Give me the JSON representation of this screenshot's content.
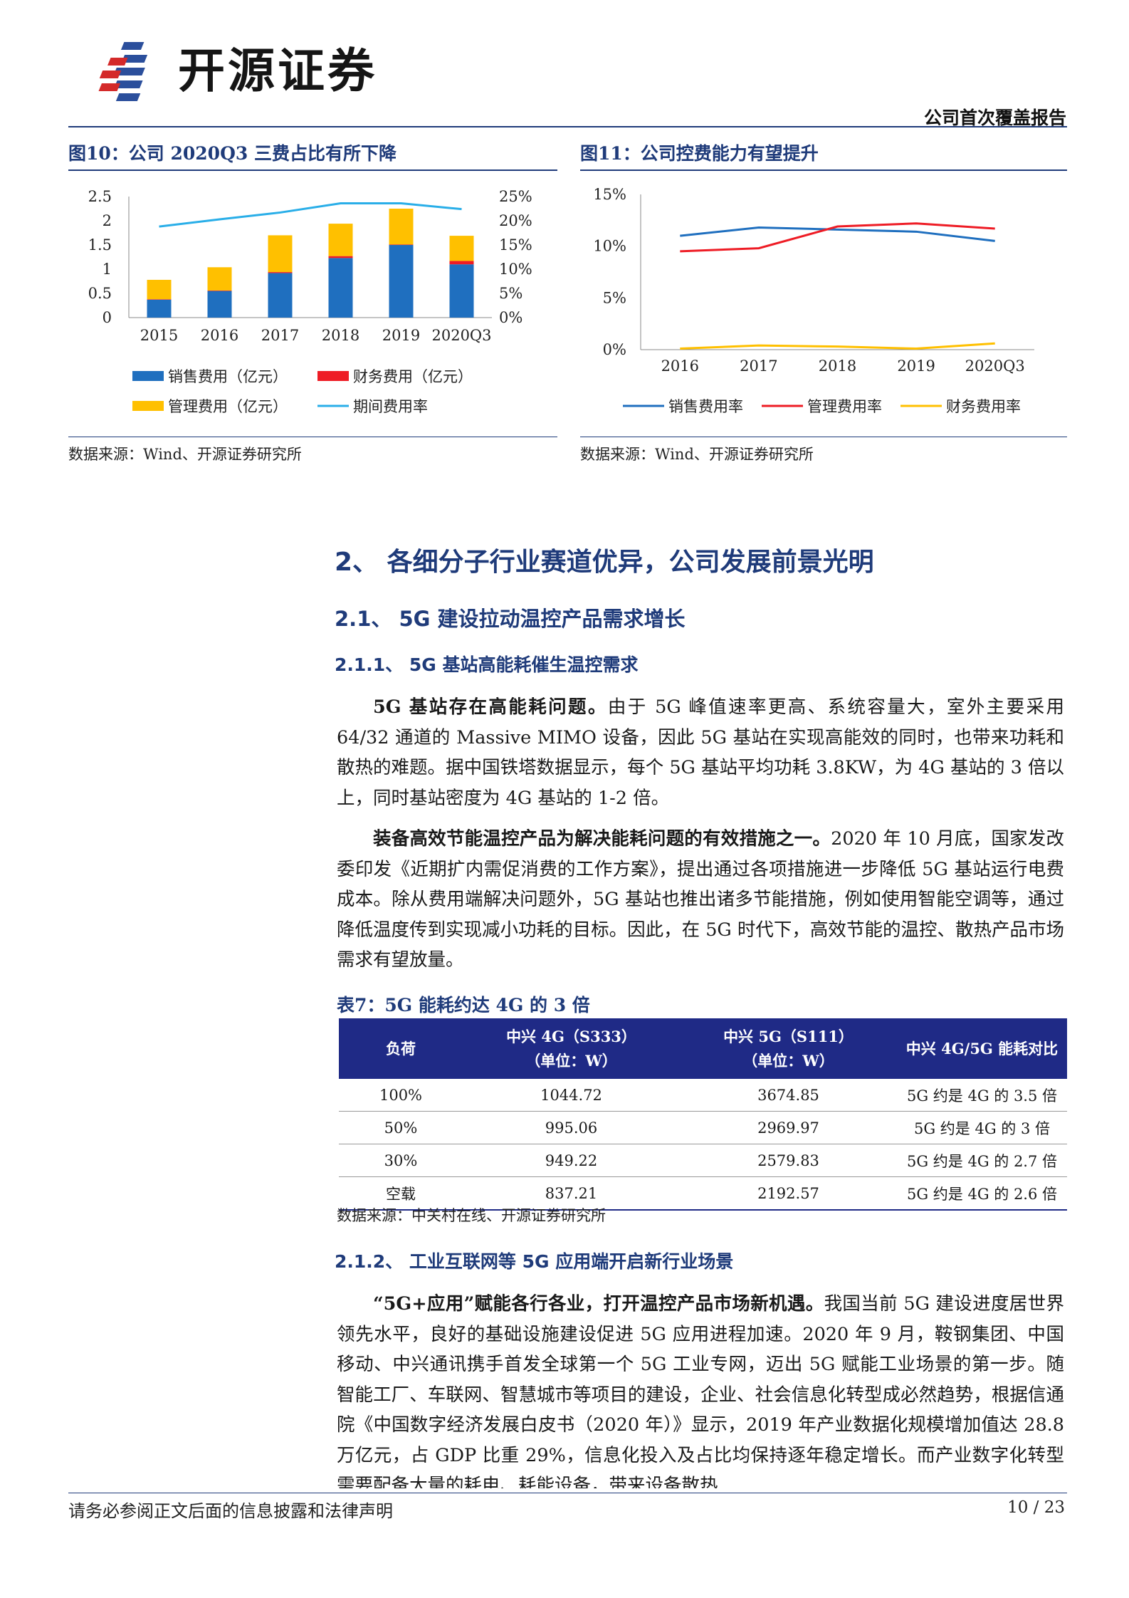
{
  "header": {
    "brand": "开源证券",
    "report_type": "公司首次覆盖报告",
    "colors": {
      "navy": "#1f3b7a",
      "logo_red": "#d42a2a",
      "logo_blue": "#2b4f9c"
    }
  },
  "figure10": {
    "title": "图10：公司 2020Q3 三费占比有所下降",
    "source": "数据来源：Wind、开源证券研究所",
    "legend": [
      "销售费用（亿元）",
      "财务费用（亿元）",
      "管理费用（亿元）",
      "期间费用率"
    ]
  },
  "figure11": {
    "title": "图11：公司控费能力有望提升",
    "source": "数据来源：Wind、开源证券研究所",
    "legend": [
      "销售费用率",
      "管理费用率",
      "财务费用率"
    ]
  },
  "chart_data": [
    {
      "type": "bar",
      "stacked": true,
      "categories": [
        "2015",
        "2016",
        "2017",
        "2018",
        "2019",
        "2020Q3"
      ],
      "series": [
        {
          "name": "销售费用（亿元）",
          "color": "#1f6fbf",
          "values": [
            0.37,
            0.55,
            0.92,
            1.23,
            1.5,
            1.1
          ]
        },
        {
          "name": "财务费用（亿元）",
          "color": "#ee1c25",
          "values": [
            0.01,
            0.01,
            0.02,
            0.04,
            0.01,
            0.07
          ]
        },
        {
          "name": "管理费用（亿元）",
          "color": "#ffc000",
          "values": [
            0.4,
            0.48,
            0.76,
            0.67,
            0.74,
            0.52
          ]
        }
      ],
      "line_series": [
        {
          "name": "期间费用率",
          "color": "#29aee8",
          "axis": "right",
          "values": [
            18.8,
            20.3,
            21.7,
            23.6,
            23.6,
            22.4
          ]
        }
      ],
      "ylim": [
        0,
        2.5
      ],
      "yticks": [
        "0",
        "0.5",
        "1",
        "1.5",
        "2",
        "2.5"
      ],
      "y2lim": [
        0,
        25
      ],
      "y2ticks": [
        "0%",
        "5%",
        "10%",
        "15%",
        "20%",
        "25%"
      ],
      "legend_position": "bottom",
      "grid": false
    },
    {
      "type": "line",
      "categories": [
        "2016",
        "2017",
        "2018",
        "2019",
        "2020Q3"
      ],
      "series": [
        {
          "name": "销售费用率",
          "color": "#1f6fbf",
          "values": [
            11.0,
            11.8,
            11.6,
            11.4,
            10.5
          ]
        },
        {
          "name": "管理费用率",
          "color": "#ee1c25",
          "values": [
            9.5,
            9.8,
            11.9,
            12.2,
            11.7
          ]
        },
        {
          "name": "财务费用率",
          "color": "#ffc000",
          "values": [
            0.1,
            0.4,
            0.3,
            0.1,
            0.6
          ]
        }
      ],
      "ylim": [
        0,
        15
      ],
      "yticks": [
        "0%",
        "5%",
        "10%",
        "15%"
      ],
      "legend_position": "bottom",
      "grid": false
    }
  ],
  "section": {
    "h1": "2、 各细分子行业赛道优异，公司发展前景光明",
    "h2": "2.1、 5G 建设拉动温控产品需求增长",
    "h3_1": "2.1.1、 5G 基站高能耗催生温控需求",
    "p1_bold": "5G 基站存在高能耗问题。",
    "p1_text": "由于 5G 峰值速率更高、系统容量大，室外主要采用 64/32 通道的 Massive MIMO 设备，因此 5G 基站在实现高能效的同时，也带来功耗和散热的难题。据中国铁塔数据显示，每个 5G 基站平均功耗 3.8KW，为 4G 基站的 3 倍以上，同时基站密度为 4G 基站的 1-2 倍。",
    "p2_bold": "装备高效节能温控产品为解决能耗问题的有效措施之一。",
    "p2_text": "2020 年 10 月底，国家发改委印发《近期扩内需促消费的工作方案》，提出通过各项措施进一步降低 5G 基站运行电费成本。除从费用端解决问题外，5G 基站也推出诸多节能措施，例如使用智能空调等，通过降低温度传到实现减小功耗的目标。因此，在 5G 时代下，高效节能的温控、散热产品市场需求有望放量。",
    "table_title": "表7：5G 能耗约达 4G 的 3 倍",
    "table_headers": [
      "负荷",
      "中兴 4G（S333）",
      "（单位：W）",
      "中兴 5G（S111）",
      "（单位：W）",
      "中兴 4G/5G 能耗对比"
    ],
    "table_rows": [
      [
        "100%",
        "1044.72",
        "3674.85",
        "5G 约是 4G 的 3.5 倍"
      ],
      [
        "50%",
        "995.06",
        "2969.97",
        "5G 约是 4G 的 3 倍"
      ],
      [
        "30%",
        "949.22",
        "2579.83",
        "5G 约是 4G 的 2.7 倍"
      ],
      [
        "空载",
        "837.21",
        "2192.57",
        "5G 约是 4G 的 2.6 倍"
      ]
    ],
    "table_source": "数据来源：中关村在线、开源证券研究所",
    "h3_2": "2.1.2、 工业互联网等 5G 应用端开启新行业场景",
    "p3_bold": "“5G+应用”赋能各行各业，打开温控产品市场新机遇。",
    "p3_text": "我国当前 5G 建设进度居世界领先水平，良好的基础设施建设促进 5G 应用进程加速。2020 年 9 月，鞍钢集团、中国移动、中兴通讯携手首发全球第一个 5G 工业专网，迈出 5G 赋能工业场景的第一步。随智能工厂、车联网、智慧城市等项目的建设，企业、社会信息化转型成必然趋势，根据信通院《中国数字经济发展白皮书（2020 年）》显示，2019 年产业数据化规模增加值达 28.8 万亿元，占 GDP 比重 29%，信息化投入及占比均保持逐年稳定增长。而产业数字化转型需要配备大量的耗电、耗能设备，带来设备散热"
  },
  "footer": {
    "note": "请务必参阅正文后面的信息披露和法律声明",
    "page": "10 / 23"
  }
}
